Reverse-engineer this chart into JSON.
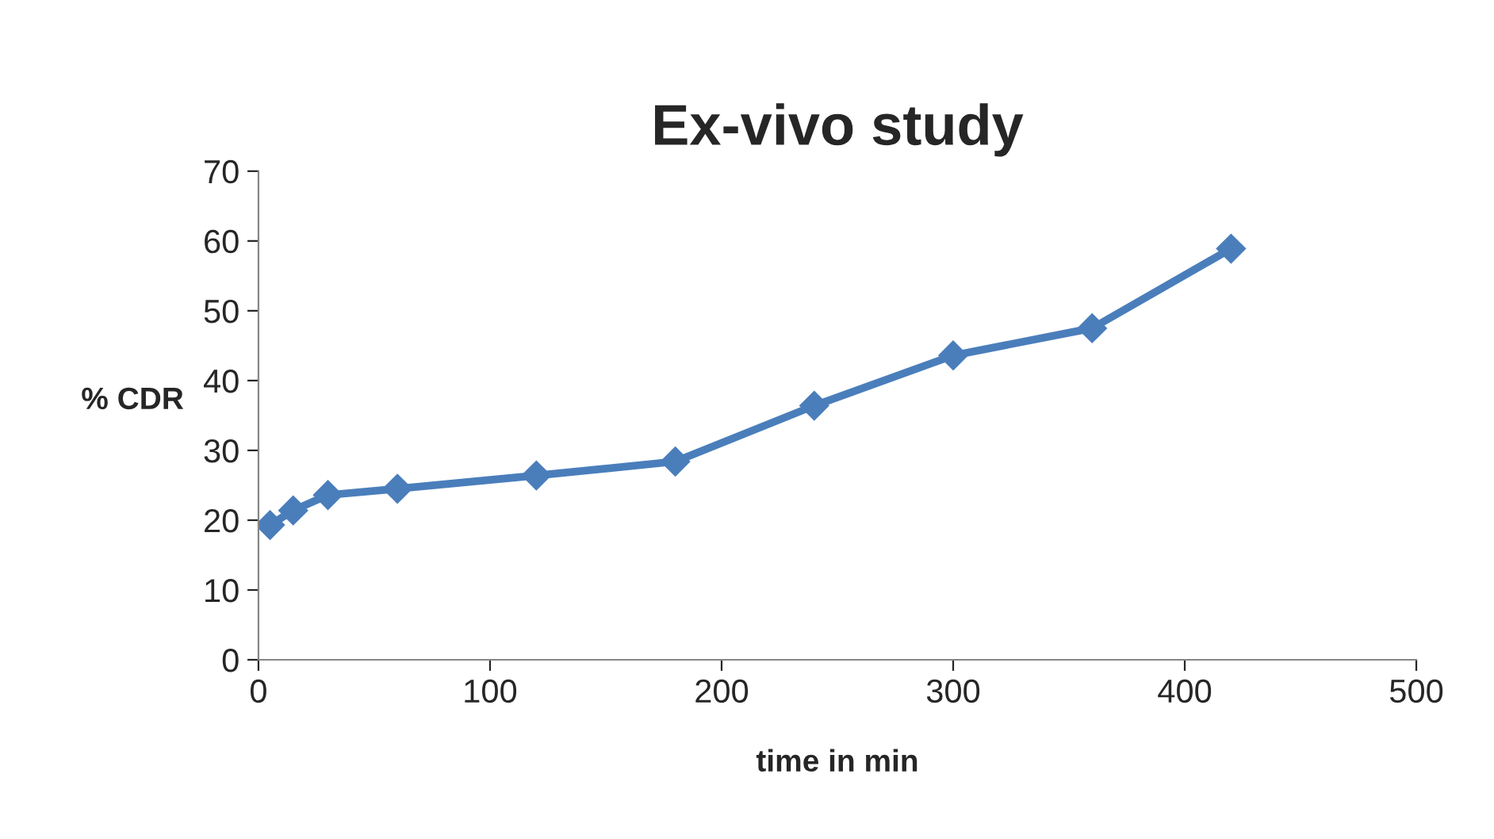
{
  "chart_data": {
    "type": "line",
    "title": "Ex-vivo study",
    "xlabel": "time in min",
    "ylabel": "% CDR",
    "x": [
      5,
      15,
      30,
      60,
      120,
      180,
      240,
      300,
      360,
      420
    ],
    "series": [
      {
        "color": "#4a7ebb",
        "values": [
          19.3,
          21.4,
          23.6,
          24.5,
          26.4,
          28.4,
          36.4,
          43.6,
          47.5,
          58.9
        ]
      }
    ],
    "xlim": [
      0,
      500
    ],
    "xticks": [
      0,
      100,
      200,
      300,
      400,
      500
    ],
    "ylim": [
      0,
      70
    ],
    "yticks": [
      0,
      10,
      20,
      30,
      40,
      50,
      60,
      70
    ],
    "grid": false,
    "legend": false,
    "marker": "diamond",
    "line_style": "solid"
  }
}
